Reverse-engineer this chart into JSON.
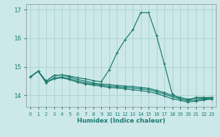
{
  "bg_color": "#cce8e8",
  "grid_color": "#add4d4",
  "line_color": "#1a7a6e",
  "x_label": "Humidex (Indice chaleur)",
  "ylim": [
    13.6,
    17.2
  ],
  "xlim": [
    -0.5,
    23.5
  ],
  "yticks": [
    14,
    15,
    16,
    17
  ],
  "xticks": [
    0,
    1,
    2,
    3,
    4,
    5,
    6,
    7,
    8,
    9,
    10,
    11,
    12,
    13,
    14,
    15,
    16,
    17,
    18,
    19,
    20,
    21,
    22,
    23
  ],
  "series": [
    [
      14.65,
      14.85,
      14.5,
      14.7,
      14.72,
      14.68,
      14.62,
      14.58,
      14.52,
      14.48,
      14.9,
      15.5,
      15.95,
      16.3,
      16.9,
      16.9,
      16.1,
      15.1,
      14.05,
      13.88,
      13.82,
      13.93,
      13.93,
      13.93
    ],
    [
      14.65,
      14.85,
      14.5,
      14.7,
      14.72,
      14.64,
      14.56,
      14.5,
      14.44,
      14.4,
      14.38,
      14.35,
      14.33,
      14.31,
      14.28,
      14.25,
      14.18,
      14.1,
      14.0,
      13.93,
      13.87,
      13.9,
      13.9,
      13.9
    ],
    [
      14.65,
      14.85,
      14.45,
      14.62,
      14.65,
      14.58,
      14.5,
      14.44,
      14.4,
      14.36,
      14.33,
      14.3,
      14.28,
      14.26,
      14.23,
      14.2,
      14.13,
      14.05,
      13.95,
      13.88,
      13.82,
      13.84,
      13.87,
      13.9
    ],
    [
      14.65,
      14.85,
      14.45,
      14.58,
      14.62,
      14.55,
      14.46,
      14.4,
      14.36,
      14.32,
      14.28,
      14.26,
      14.23,
      14.2,
      14.17,
      14.13,
      14.07,
      13.98,
      13.88,
      13.83,
      13.76,
      13.8,
      13.84,
      13.87
    ]
  ]
}
